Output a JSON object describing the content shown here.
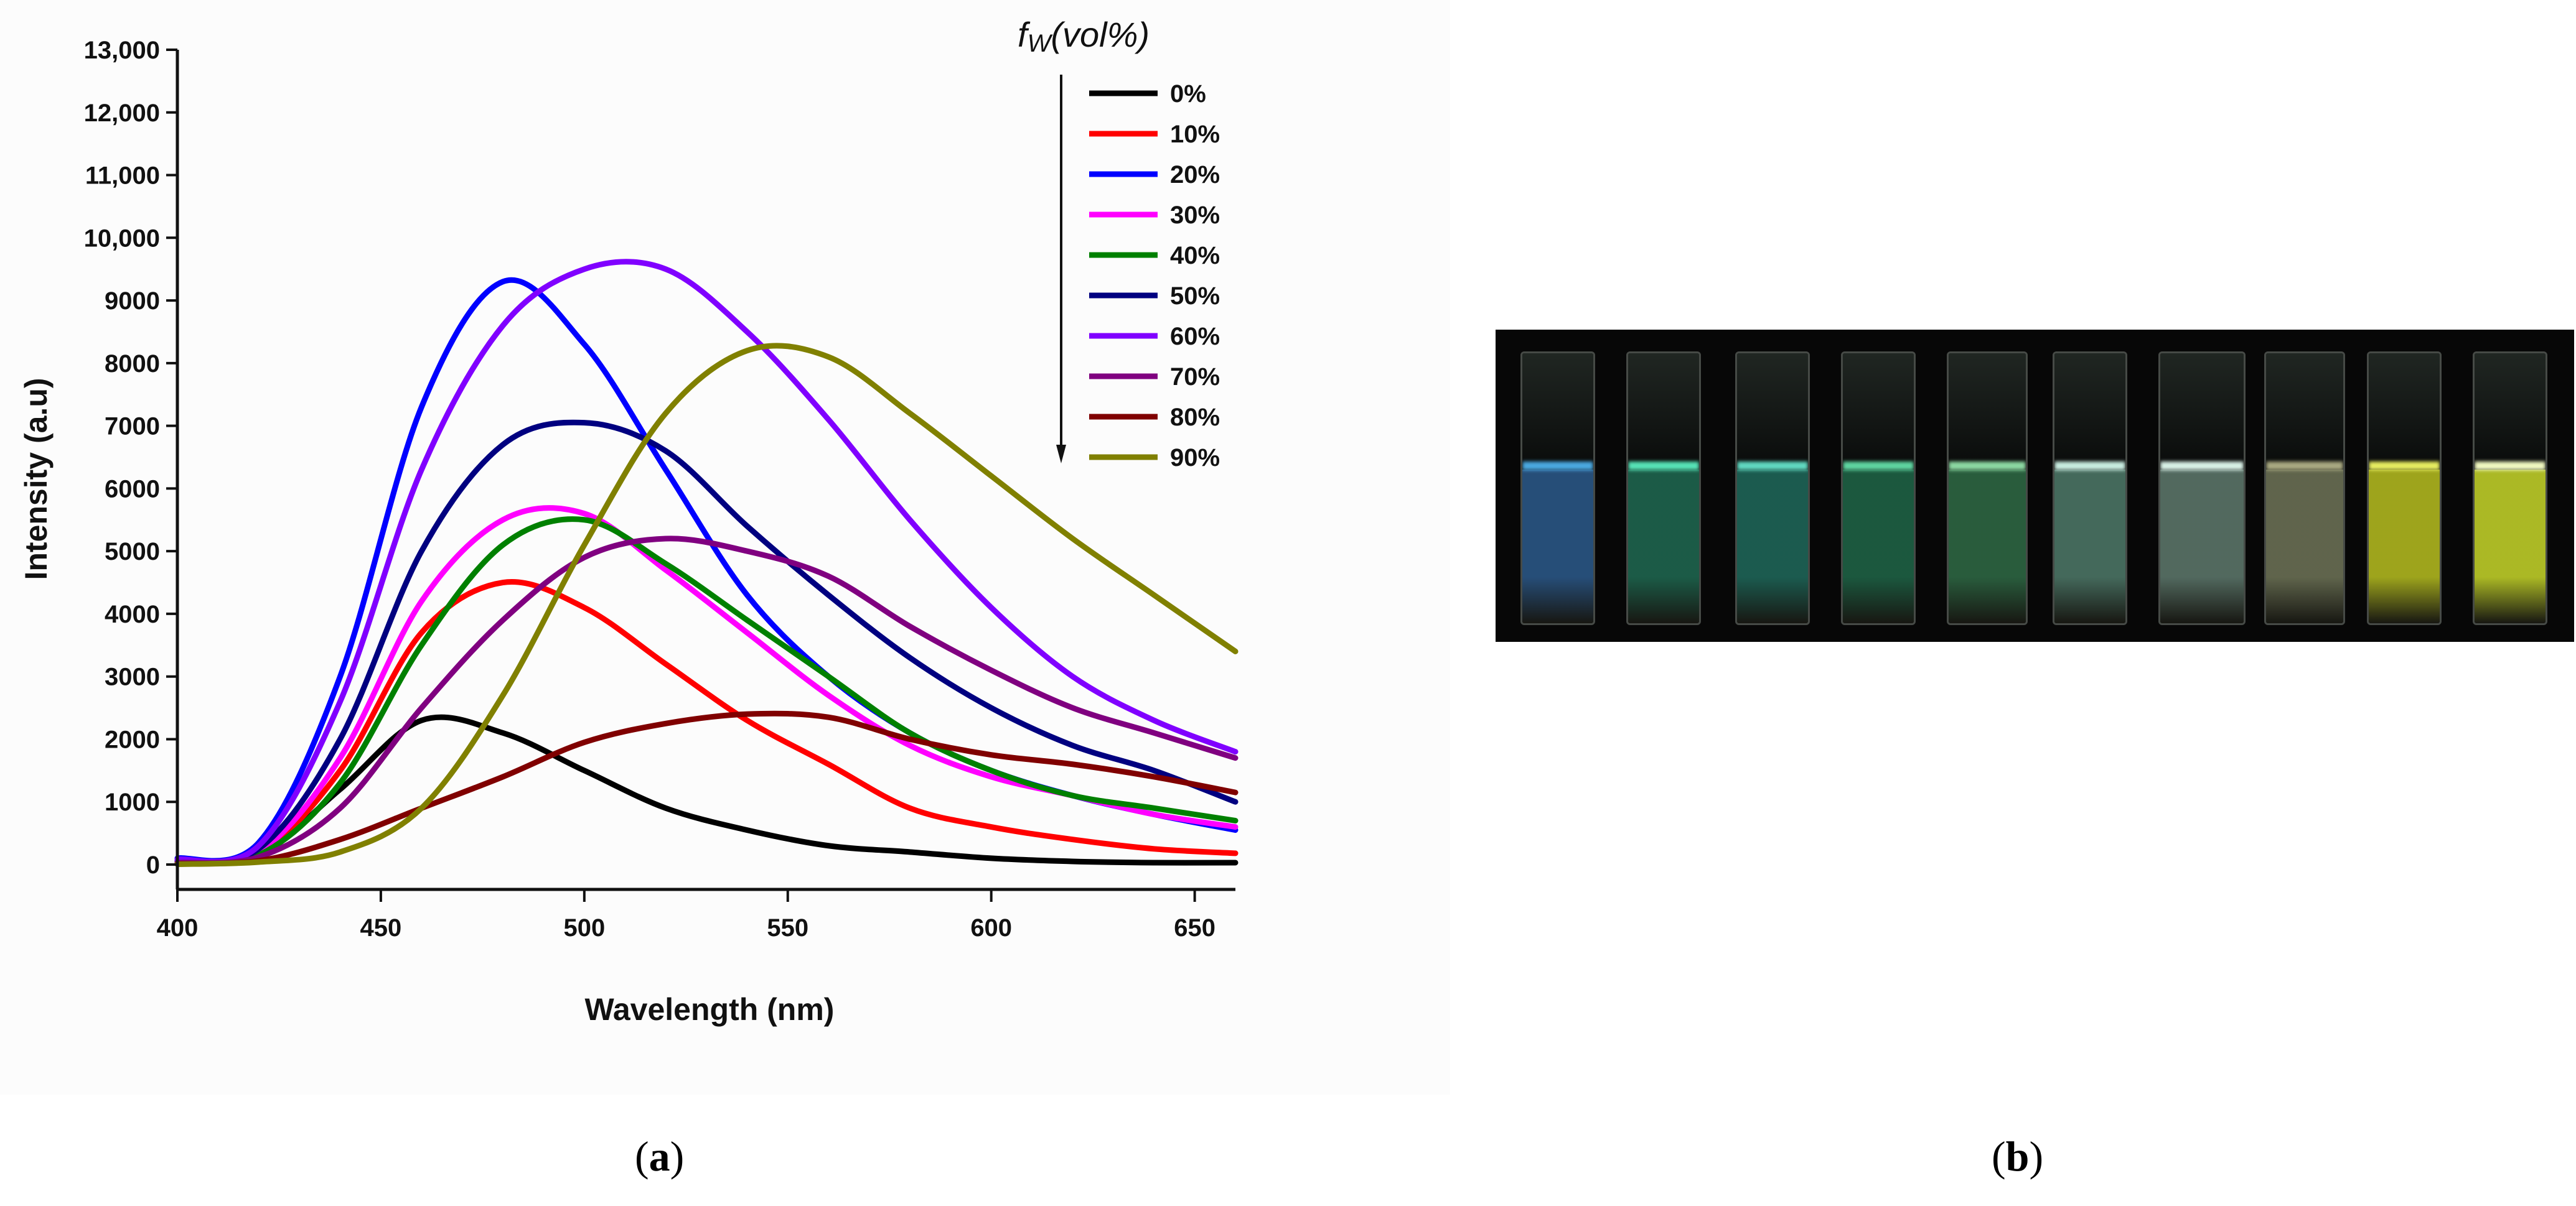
{
  "chart_data": {
    "type": "line",
    "xlabel": "Wavelength (nm)",
    "ylabel": "Intensity (a.u)",
    "xlim": [
      400,
      660
    ],
    "ylim": [
      0,
      13000
    ],
    "xticks": [
      400,
      450,
      500,
      550,
      600,
      650
    ],
    "yticks": [
      0,
      1000,
      2000,
      3000,
      4000,
      5000,
      6000,
      7000,
      8000,
      9000,
      10000,
      11000,
      12000,
      13000
    ],
    "ytick_labels": [
      "0",
      "1000",
      "2000",
      "3000",
      "4000",
      "5000",
      "6000",
      "7000",
      "8000",
      "9000",
      "10,000",
      "11,000",
      "12,000",
      "13,000"
    ],
    "xtick_labels": [
      "400",
      "450",
      "500",
      "550",
      "600",
      "650"
    ],
    "legend_title": "f",
    "legend_title_sub": "W",
    "legend_title_suffix": "(vol%)",
    "legend_position": "top-right",
    "x": [
      400,
      420,
      440,
      460,
      480,
      500,
      520,
      540,
      560,
      580,
      600,
      620,
      640,
      660
    ],
    "series": [
      {
        "name": "0%",
        "color": "#000000",
        "values": [
          20,
          150,
          1200,
          2300,
          2100,
          1500,
          900,
          550,
          300,
          200,
          100,
          50,
          30,
          30
        ]
      },
      {
        "name": "10%",
        "color": "#ff0000",
        "values": [
          30,
          180,
          1500,
          3700,
          4500,
          4100,
          3200,
          2300,
          1600,
          900,
          600,
          400,
          250,
          180
        ]
      },
      {
        "name": "20%",
        "color": "#0000ff",
        "values": [
          100,
          350,
          3000,
          7300,
          9300,
          8300,
          6300,
          4300,
          3000,
          2100,
          1500,
          1100,
          800,
          550
        ]
      },
      {
        "name": "30%",
        "color": "#ff00ff",
        "values": [
          50,
          200,
          1700,
          4200,
          5500,
          5600,
          4700,
          3700,
          2700,
          1900,
          1400,
          1100,
          800,
          600
        ]
      },
      {
        "name": "40%",
        "color": "#008000",
        "values": [
          40,
          150,
          1300,
          3500,
          5100,
          5500,
          4800,
          3900,
          3000,
          2100,
          1500,
          1100,
          900,
          700
        ]
      },
      {
        "name": "50%",
        "color": "#000080",
        "values": [
          60,
          250,
          2000,
          5000,
          6700,
          7050,
          6600,
          5400,
          4300,
          3300,
          2500,
          1900,
          1500,
          1000
        ]
      },
      {
        "name": "60%",
        "color": "#8000ff",
        "values": [
          80,
          300,
          2600,
          6300,
          8600,
          9500,
          9500,
          8500,
          7100,
          5500,
          4100,
          3000,
          2300,
          1800
        ]
      },
      {
        "name": "70%",
        "color": "#800080",
        "values": [
          30,
          120,
          900,
          2500,
          3900,
          4900,
          5200,
          5000,
          4600,
          3800,
          3100,
          2500,
          2100,
          1700
        ]
      },
      {
        "name": "80%",
        "color": "#800000",
        "values": [
          10,
          60,
          400,
          900,
          1400,
          1950,
          2250,
          2400,
          2350,
          2000,
          1750,
          1600,
          1400,
          1150
        ]
      },
      {
        "name": "90%",
        "color": "#808000",
        "values": [
          5,
          40,
          200,
          900,
          2700,
          5100,
          7200,
          8200,
          8100,
          7200,
          6200,
          5200,
          4300,
          3400
        ]
      }
    ]
  },
  "captions": {
    "a_open": "(",
    "a_letter": "a",
    "a_close": ")",
    "b_open": "(",
    "b_letter": "b",
    "b_close": ")"
  },
  "photo_b": {
    "cuvettes": [
      {
        "liquid": "#2c5a8c",
        "glow": "#4aa8e0"
      },
      {
        "liquid": "#1f6a52",
        "glow": "#56e2b6"
      },
      {
        "liquid": "#1f6a5c",
        "glow": "#60d8c0"
      },
      {
        "liquid": "#1f6648",
        "glow": "#5ed4a0"
      },
      {
        "liquid": "#2f6b46",
        "glow": "#8cd8a2"
      },
      {
        "liquid": "#4f7a6a",
        "glow": "#c8ece0"
      },
      {
        "liquid": "#5f7a6e",
        "glow": "#d8f0e6"
      },
      {
        "liquid": "#6f7558",
        "glow": "#a8a880"
      },
      {
        "liquid": "#b8c020",
        "glow": "#e6ec60"
      },
      {
        "liquid": "#c8d82a",
        "glow": "#f0f8c0"
      }
    ]
  }
}
